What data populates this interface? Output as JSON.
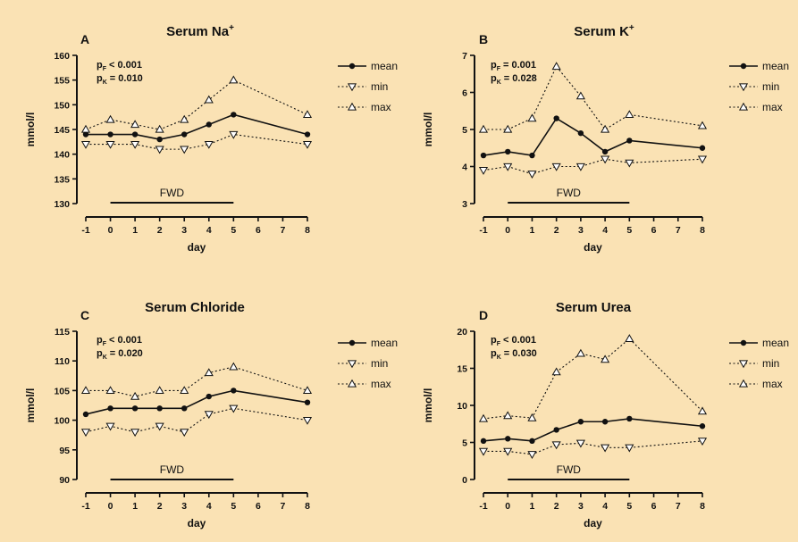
{
  "chart_data": [
    {
      "panel": "A",
      "type": "line",
      "title_main": "Serum Na",
      "title_sup": "+",
      "ylabel": "mmol/l",
      "xlabel": "day",
      "ylim": [
        130,
        160
      ],
      "yticks": [
        "130",
        "135",
        "140",
        "145",
        "150",
        "155",
        "160"
      ],
      "x": [
        -1,
        0,
        1,
        2,
        3,
        4,
        5,
        8
      ],
      "xticks": [
        "-1",
        "0",
        "1",
        "2",
        "3",
        "4",
        "5",
        "6",
        "7",
        "8"
      ],
      "series": [
        {
          "name": "mean",
          "marker": "circle",
          "values": [
            144,
            144,
            144,
            143,
            144,
            146,
            148,
            144
          ]
        },
        {
          "name": "min",
          "marker": "triangle-down",
          "values": [
            142,
            142,
            142,
            141,
            141,
            142,
            144,
            142
          ]
        },
        {
          "name": "max",
          "marker": "triangle-up",
          "values": [
            145,
            147,
            146,
            145,
            147,
            151,
            155,
            148
          ]
        }
      ],
      "stats": [
        {
          "sym": "p",
          "sub": "F",
          "text": "< 0.001"
        },
        {
          "sym": "p",
          "sub": "K",
          "text": "= 0.010"
        }
      ],
      "annotation": {
        "label": "FWD",
        "from": 0,
        "to": 5
      }
    },
    {
      "panel": "B",
      "type": "line",
      "title_main": "Serum K",
      "title_sup": "+",
      "ylabel": "mmol/l",
      "xlabel": "day",
      "ylim": [
        3,
        7
      ],
      "yticks": [
        "3",
        "4",
        "5",
        "6",
        "7"
      ],
      "x": [
        -1,
        0,
        1,
        2,
        3,
        4,
        5,
        8
      ],
      "xticks": [
        "-1",
        "0",
        "1",
        "2",
        "3",
        "4",
        "5",
        "6",
        "7",
        "8"
      ],
      "series": [
        {
          "name": "mean",
          "marker": "circle",
          "values": [
            4.3,
            4.4,
            4.3,
            5.3,
            4.9,
            4.4,
            4.7,
            4.5
          ]
        },
        {
          "name": "min",
          "marker": "triangle-down",
          "values": [
            3.9,
            4.0,
            3.8,
            4.0,
            4.0,
            4.2,
            4.1,
            4.2
          ]
        },
        {
          "name": "max",
          "marker": "triangle-up",
          "values": [
            5.0,
            5.0,
            5.3,
            6.7,
            5.9,
            5.0,
            5.4,
            5.1
          ]
        }
      ],
      "stats": [
        {
          "sym": "p",
          "sub": "F",
          "text": "= 0.001"
        },
        {
          "sym": "p",
          "sub": "K",
          "text": "= 0.028"
        }
      ],
      "annotation": {
        "label": "FWD",
        "from": 0,
        "to": 5
      }
    },
    {
      "panel": "C",
      "type": "line",
      "title_main": "Serum Chloride",
      "title_sup": "",
      "ylabel": "mmol/l",
      "xlabel": "day",
      "ylim": [
        90,
        115
      ],
      "yticks": [
        "90",
        "95",
        "100",
        "105",
        "110",
        "115"
      ],
      "x": [
        -1,
        0,
        1,
        2,
        3,
        4,
        5,
        8
      ],
      "xticks": [
        "-1",
        "0",
        "1",
        "2",
        "3",
        "4",
        "5",
        "6",
        "7",
        "8"
      ],
      "series": [
        {
          "name": "mean",
          "marker": "circle",
          "values": [
            101,
            102,
            102,
            102,
            102,
            104,
            105,
            103
          ]
        },
        {
          "name": "min",
          "marker": "triangle-down",
          "values": [
            98,
            99,
            98,
            99,
            98,
            101,
            102,
            100
          ]
        },
        {
          "name": "max",
          "marker": "triangle-up",
          "values": [
            105,
            105,
            104,
            105,
            105,
            108,
            109,
            105
          ]
        }
      ],
      "stats": [
        {
          "sym": "p",
          "sub": "F",
          "text": "< 0.001"
        },
        {
          "sym": "p",
          "sub": "K",
          "text": "= 0.020"
        }
      ],
      "annotation": {
        "label": "FWD",
        "from": 0,
        "to": 5
      }
    },
    {
      "panel": "D",
      "type": "line",
      "title_main": "Serum Urea",
      "title_sup": "",
      "ylabel": "mmol/l",
      "xlabel": "day",
      "ylim": [
        0,
        20
      ],
      "yticks": [
        "0",
        "5",
        "10",
        "15",
        "20"
      ],
      "x": [
        -1,
        0,
        1,
        2,
        3,
        4,
        5,
        8
      ],
      "xticks": [
        "-1",
        "0",
        "1",
        "2",
        "3",
        "4",
        "5",
        "6",
        "7",
        "8"
      ],
      "series": [
        {
          "name": "mean",
          "marker": "circle",
          "values": [
            5.2,
            5.5,
            5.2,
            6.7,
            7.8,
            7.8,
            8.2,
            7.2
          ]
        },
        {
          "name": "min",
          "marker": "triangle-down",
          "values": [
            3.8,
            3.8,
            3.4,
            4.7,
            4.9,
            4.3,
            4.3,
            5.2
          ]
        },
        {
          "name": "max",
          "marker": "triangle-up",
          "values": [
            8.2,
            8.6,
            8.3,
            14.5,
            17.0,
            16.2,
            19.0,
            9.2
          ]
        }
      ],
      "stats": [
        {
          "sym": "p",
          "sub": "F",
          "text": "< 0.001"
        },
        {
          "sym": "p",
          "sub": "K",
          "text": "= 0.030"
        }
      ],
      "annotation": {
        "label": "FWD",
        "from": 0,
        "to": 5
      }
    }
  ],
  "colors": {
    "background": "#fae2b4",
    "ink": "#111111",
    "marker_open": "#ffffff"
  }
}
